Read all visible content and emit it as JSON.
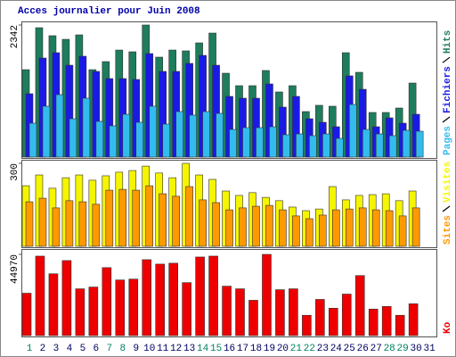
{
  "chart_data": [
    {
      "type": "bar",
      "title": "Acces journalier pour Juin 2008",
      "categories": [
        "1",
        "2",
        "3",
        "4",
        "5",
        "6",
        "7",
        "8",
        "9",
        "10",
        "11",
        "12",
        "13",
        "14",
        "15",
        "16",
        "17",
        "18",
        "19",
        "20",
        "21",
        "22",
        "23",
        "24",
        "25",
        "26",
        "27",
        "28",
        "29",
        "30",
        "31"
      ],
      "category_colors": [
        "#008060",
        "#000060",
        "#000060",
        "#000060",
        "#000060",
        "#000060",
        "#008060",
        "#008060",
        "#000060",
        "#000060",
        "#000060",
        "#000060",
        "#000060",
        "#008060",
        "#008060",
        "#000060",
        "#000060",
        "#000060",
        "#000060",
        "#000060",
        "#008060",
        "#008060",
        "#000060",
        "#000060",
        "#000060",
        "#000060",
        "#000060",
        "#008060",
        "#008060",
        "#000060",
        "#000060"
      ],
      "ylim": [
        0,
        2342
      ],
      "yticks": [
        2342
      ],
      "series": [
        {
          "name": "Pages",
          "color": "#33bbee",
          "values": [
            601,
            902,
            1107,
            680,
            1044,
            633,
            554,
            759,
            617,
            902,
            585,
            807,
            744,
            807,
            775,
            490,
            522,
            522,
            538,
            396,
            411,
            380,
            411,
            332,
            933,
            490,
            411,
            380,
            475,
            459,
            0
          ]
        },
        {
          "name": "Fichiers",
          "color": "#1a1ae6",
          "values": [
            1123,
            1756,
            1851,
            1629,
            1788,
            1519,
            1392,
            1392,
            1376,
            1835,
            1519,
            1519,
            1661,
            1803,
            1629,
            1076,
            1044,
            1044,
            1297,
            886,
            1076,
            680,
            617,
            538,
            1440,
            1202,
            538,
            696,
            601,
            759,
            0
          ]
        },
        {
          "name": "Hits",
          "color": "#1e7d5c",
          "values": [
            1550,
            2294,
            2152,
            2088,
            2167,
            1550,
            1693,
            1898,
            1867,
            2342,
            1772,
            1898,
            1883,
            2025,
            2199,
            1487,
            1266,
            1266,
            1535,
            1155,
            1266,
            807,
            918,
            902,
            1851,
            1503,
            791,
            791,
            870,
            1313,
            0
          ]
        }
      ]
    },
    {
      "type": "bar",
      "ylim": [
        0,
        300
      ],
      "yticks": [
        300
      ],
      "series": [
        {
          "name": "Sites",
          "color": "#ff9900",
          "values": [
            161,
            174,
            139,
            165,
            161,
            152,
            203,
            206,
            203,
            219,
            190,
            181,
            216,
            168,
            158,
            132,
            139,
            145,
            148,
            132,
            110,
            100,
            113,
            132,
            135,
            139,
            132,
            129,
            110,
            139,
            0
          ]
        },
        {
          "name": "Visites",
          "color": "#f5f500",
          "values": [
            219,
            258,
            210,
            248,
            258,
            239,
            255,
            268,
            274,
            290,
            265,
            248,
            300,
            258,
            242,
            200,
            184,
            194,
            177,
            165,
            142,
            129,
            135,
            216,
            168,
            184,
            187,
            190,
            165,
            200,
            0
          ]
        }
      ]
    },
    {
      "type": "bar",
      "ylim": [
        0,
        44970
      ],
      "yticks": [
        44970
      ],
      "series": [
        {
          "name": "Ko",
          "color": "#ee0000",
          "values": [
            23462,
            44000,
            34220,
            41546,
            25906,
            26884,
            37639,
            30795,
            31284,
            42035,
            39580,
            40069,
            29328,
            43511,
            44000,
            27373,
            25906,
            19551,
            44970,
            25417,
            25906,
            11243,
            20040,
            15153,
            22974,
            33239,
            14664,
            16130,
            11243,
            17597,
            0
          ]
        }
      ]
    }
  ]
}
